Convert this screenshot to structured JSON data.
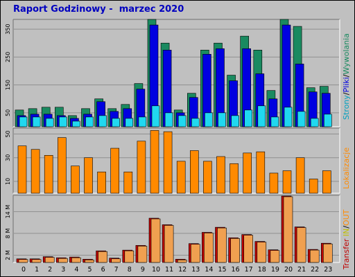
{
  "title": "Raport Godzinowy -  marzec 2020",
  "colors": {
    "background": "#c0c0c0",
    "panel": "#a0a0a0",
    "hits": "#1a8a60",
    "files": "#0000e0",
    "pages": "#20d8f0",
    "sites": "#ff8a00",
    "kbytes": "#f0a050",
    "kbytes_shadow": "#c00000",
    "title": "#0000c0"
  },
  "labels": {
    "chart1": {
      "strony": "Strony",
      "sep1": "/",
      "pliki": "Pliki",
      "sep2": "/",
      "wywolania": "Wywolania"
    },
    "chart2": {
      "lokalizacje": "Lokalizacje"
    },
    "chart3": {
      "transfer": "Transfer",
      "in": "IN",
      "sep": "/",
      "out": "OUT"
    }
  },
  "chart_data": [
    {
      "type": "bar",
      "categories": [
        "0",
        "1",
        "2",
        "3",
        "4",
        "5",
        "6",
        "7",
        "8",
        "9",
        "10",
        "11",
        "12",
        "13",
        "14",
        "15",
        "16",
        "17",
        "18",
        "19",
        "20",
        "21",
        "22",
        "23"
      ],
      "yticks": [
        50,
        150,
        250,
        350
      ],
      "ylim": [
        0,
        385
      ],
      "series": [
        {
          "name": "Wywolania",
          "values": [
            60,
            65,
            70,
            70,
            40,
            65,
            100,
            65,
            80,
            155,
            385,
            300,
            60,
            120,
            275,
            300,
            185,
            325,
            275,
            130,
            385,
            360,
            140,
            145
          ]
        },
        {
          "name": "Pliki",
          "values": [
            40,
            45,
            45,
            40,
            30,
            45,
            90,
            55,
            65,
            135,
            365,
            275,
            50,
            105,
            260,
            280,
            165,
            280,
            190,
            100,
            365,
            225,
            125,
            120
          ]
        },
        {
          "name": "Strony",
          "values": [
            35,
            35,
            30,
            35,
            20,
            35,
            40,
            30,
            30,
            35,
            75,
            50,
            40,
            30,
            50,
            50,
            40,
            60,
            75,
            35,
            70,
            55,
            30,
            45
          ]
        }
      ]
    },
    {
      "type": "bar",
      "categories": [
        "0",
        "1",
        "2",
        "3",
        "4",
        "5",
        "6",
        "7",
        "8",
        "9",
        "10",
        "11",
        "12",
        "13",
        "14",
        "15",
        "16",
        "17",
        "18",
        "19",
        "20",
        "21",
        "22",
        "23"
      ],
      "yticks": [
        10,
        30,
        50
      ],
      "ylim": [
        0,
        55
      ],
      "series": [
        {
          "name": "Lokalizacje",
          "values": [
            40,
            37,
            32,
            47,
            23,
            30,
            18,
            38,
            18,
            44,
            53,
            52,
            27,
            36,
            27,
            31,
            25,
            34,
            35,
            17,
            19,
            30,
            12,
            19
          ]
        }
      ]
    },
    {
      "type": "bar",
      "categories": [
        "0",
        "1",
        "2",
        "3",
        "4",
        "5",
        "6",
        "7",
        "8",
        "9",
        "10",
        "11",
        "12",
        "13",
        "14",
        "15",
        "16",
        "17",
        "18",
        "19",
        "20",
        "21",
        "22",
        "23"
      ],
      "yticks": [
        2,
        8,
        14
      ],
      "ytick_labels": [
        "2 M",
        "8 M",
        "14 M"
      ],
      "ylim": [
        0,
        18.5
      ],
      "series": [
        {
          "name": "Transfer",
          "values": [
            1.0,
            1.0,
            1.6,
            1.3,
            1.5,
            0.9,
            3.2,
            1.2,
            3.4,
            4.7,
            12.2,
            10.4,
            0.9,
            5.2,
            8.3,
            9.7,
            6.8,
            7.7,
            5.8,
            3.5,
            18.3,
            9.8,
            3.6,
            5.3
          ]
        }
      ]
    }
  ]
}
